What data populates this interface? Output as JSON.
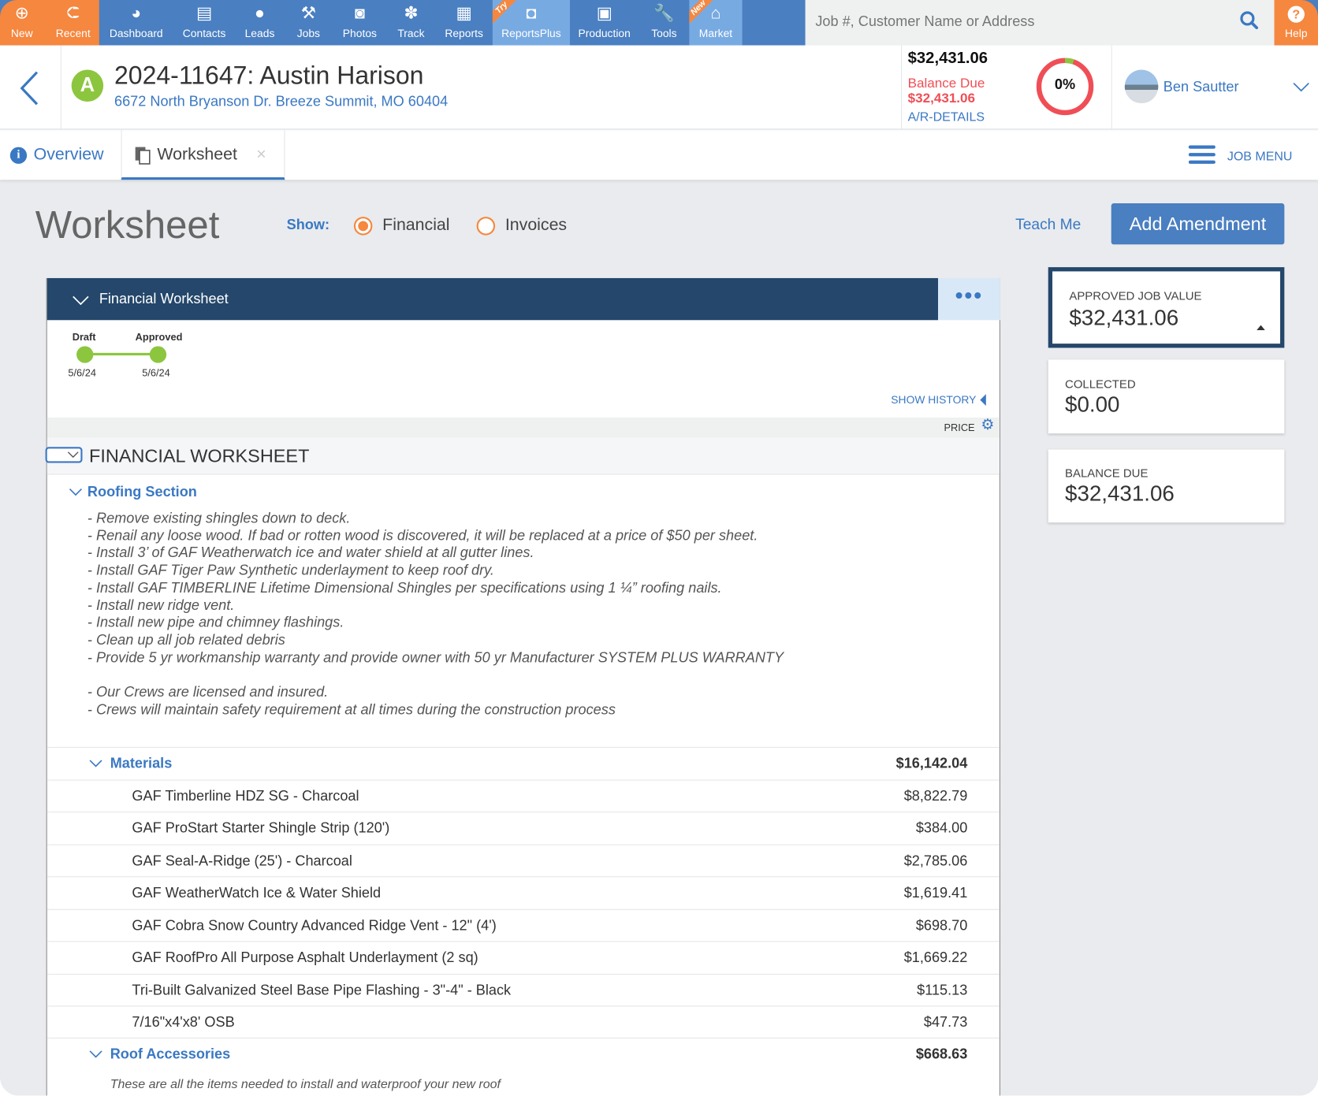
{
  "nav": {
    "items": [
      {
        "label": "New",
        "icon": "plus-circle-icon"
      },
      {
        "label": "Recent",
        "icon": "arrow-left-circle-icon"
      },
      {
        "label": "Dashboard",
        "icon": "dashboard-gauge-icon"
      },
      {
        "label": "Contacts",
        "icon": "address-book-icon"
      },
      {
        "label": "Leads",
        "icon": "user-icon"
      },
      {
        "label": "Jobs",
        "icon": "hammer-icon"
      },
      {
        "label": "Photos",
        "icon": "camera-icon"
      },
      {
        "label": "Track",
        "icon": "paw-icon"
      },
      {
        "label": "Reports",
        "icon": "document-icon"
      },
      {
        "label": "ReportsPlus",
        "icon": "reports-plus-icon",
        "ribbon": "Try"
      },
      {
        "label": "Production",
        "icon": "calendar-icon"
      },
      {
        "label": "Tools",
        "icon": "wrench-icon"
      },
      {
        "label": "Market",
        "icon": "storefront-icon",
        "ribbon": "New"
      }
    ],
    "search_placeholder": "Job #, Customer Name or Address",
    "help": "Help"
  },
  "job": {
    "status_letter": "A",
    "title": "2024-11647: Austin Harison",
    "address": "6672 North Bryanson Dr. Breeze Summit, MO 60404",
    "total": "$32,431.06",
    "balance_label": "Balance Due",
    "balance": "$32,431.06",
    "ar_link": "A/R-DETAILS",
    "percent": "0%",
    "percent_value": 0,
    "user": "Ben Sautter"
  },
  "tabs": {
    "overview": "Overview",
    "worksheet": "Worksheet",
    "job_menu": "JOB MENU"
  },
  "page": {
    "title": "Worksheet",
    "show_label": "Show:",
    "options": [
      "Financial",
      "Invoices"
    ],
    "selected": "Financial",
    "teach_me": "Teach Me",
    "add_amendment": "Add Amendment"
  },
  "worksheet": {
    "header": "Financial Worksheet",
    "timeline": [
      {
        "label": "Draft",
        "date": "5/6/24"
      },
      {
        "label": "Approved",
        "date": "5/6/24"
      }
    ],
    "show_history": "SHOW HISTORY",
    "price_label": "PRICE",
    "section_title": "FINANCIAL WORKSHEET",
    "roofing": {
      "title": "Roofing Section",
      "lines": [
        "-  Remove existing shingles down to deck.",
        "-  Renail any loose wood.  If bad or rotten wood is discovered, it will be replaced at a price of $50 per sheet.",
        "-  Install 3’ of GAF Weatherwatch ice and water shield at all gutter lines.",
        "-  Install GAF Tiger Paw Synthetic underlayment to keep roof dry.",
        "-  Install GAF TIMBERLINE Lifetime Dimensional Shingles  per specifications using 1 ¼” roofing nails.",
        "-  Install new ridge vent.",
        "-  Install new pipe and chimney flashings.",
        "-  Clean up all job related debris",
        "-  Provide 5 yr workmanship warranty and provide owner with 50 yr Manufacturer SYSTEM PLUS WARRANTY",
        "",
        "-  Our Crews are licensed and insured.",
        "- Crews will maintain safety requirement at all times during the construction process"
      ]
    },
    "materials": {
      "title": "Materials",
      "total": "$16,142.04",
      "items": [
        {
          "name": "GAF Timberline HDZ SG - Charcoal",
          "price": "$8,822.79"
        },
        {
          "name": "GAF ProStart Starter Shingle Strip (120')",
          "price": "$384.00"
        },
        {
          "name": "GAF Seal-A-Ridge (25') - Charcoal",
          "price": "$2,785.06"
        },
        {
          "name": "GAF WeatherWatch Ice & Water Shield",
          "price": "$1,619.41"
        },
        {
          "name": "GAF Cobra Snow Country Advanced Ridge Vent - 12\" (4')",
          "price": "$698.70"
        },
        {
          "name": "GAF RoofPro All Purpose Asphalt Underlayment (2 sq)",
          "price": "$1,669.22"
        },
        {
          "name": "Tri-Built Galvanized Steel Base Pipe Flashing - 3\"-4\" - Black",
          "price": "$115.13"
        },
        {
          "name": "7/16\"x4'x8' OSB",
          "price": "$47.73"
        }
      ]
    },
    "accessories": {
      "title": "Roof Accessories",
      "total": "$668.63",
      "description": "These are all the items needed to install and waterproof your new roof"
    }
  },
  "summary": [
    {
      "label": "APPROVED JOB VALUE",
      "value": "$32,431.06"
    },
    {
      "label": "COLLECTED",
      "value": "$0.00"
    },
    {
      "label": "BALANCE DUE",
      "value": "$32,431.06"
    }
  ],
  "colors": {
    "orange": "#F5873F",
    "nav_blue": "#4A7FC1",
    "panel_dark": "#24476B",
    "link_blue": "#3A78C3",
    "balance_red": "#F04E56",
    "status_green": "#8CC63F"
  }
}
